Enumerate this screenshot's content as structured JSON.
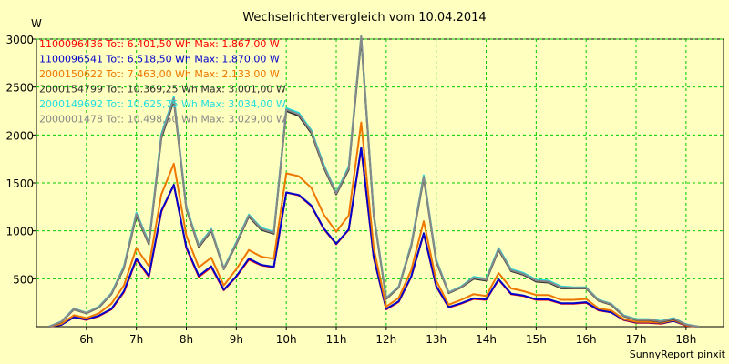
{
  "page": {
    "background": "#ffffc0",
    "plot_background": "#ffffc0",
    "grid_color": "#00cc00"
  },
  "chart_data": {
    "type": "line",
    "title": "Wechselrichtervergleich vom 10.04.2014",
    "ylabel": "W",
    "xlabel": "",
    "footer": "SunnyReport pinxit",
    "xlim": [
      5.0,
      18.75
    ],
    "ylim": [
      0,
      3000
    ],
    "x_ticks": [
      6,
      7,
      8,
      9,
      10,
      11,
      12,
      13,
      14,
      15,
      16,
      17,
      18
    ],
    "x_tick_labels": [
      "6h",
      "7h",
      "8h",
      "9h",
      "10h",
      "11h",
      "12h",
      "13h",
      "14h",
      "15h",
      "16h",
      "17h",
      "18h"
    ],
    "y_ticks": [
      500,
      1000,
      1500,
      2000,
      2500,
      3000
    ],
    "y_tick_labels": [
      "500",
      "1000",
      "1500",
      "2000",
      "2500",
      "3000"
    ],
    "grid": true,
    "legend_position": "top-left",
    "x": [
      5.25,
      5.5,
      5.75,
      6.0,
      6.25,
      6.5,
      6.75,
      7.0,
      7.25,
      7.5,
      7.75,
      8.0,
      8.25,
      8.5,
      8.75,
      9.0,
      9.25,
      9.5,
      9.75,
      10.0,
      10.25,
      10.5,
      10.75,
      11.0,
      11.25,
      11.5,
      11.75,
      12.0,
      12.25,
      12.5,
      12.75,
      13.0,
      13.25,
      13.5,
      13.75,
      14.0,
      14.25,
      14.5,
      14.75,
      15.0,
      15.25,
      15.5,
      15.75,
      16.0,
      16.25,
      16.5,
      16.75,
      17.0,
      17.25,
      17.5,
      17.75,
      18.0,
      18.25
    ],
    "series": [
      {
        "name": "1100096436 Tot: 6.401,50 Wh Max: 1.867,00 W",
        "color": "#ff0000",
        "values": [
          0,
          20,
          100,
          70,
          110,
          180,
          360,
          700,
          520,
          1200,
          1480,
          820,
          520,
          620,
          380,
          520,
          700,
          640,
          620,
          1400,
          1370,
          1260,
          1020,
          860,
          1010,
          1860,
          720,
          180,
          260,
          520,
          970,
          420,
          200,
          240,
          290,
          280,
          490,
          340,
          320,
          280,
          280,
          240,
          240,
          250,
          170,
          150,
          70,
          40,
          40,
          30,
          60,
          10,
          0
        ]
      },
      {
        "name": "1100096541 Tot: 6.518,50 Wh Max: 1.870,00 W",
        "color": "#0000cc",
        "values": [
          0,
          20,
          100,
          75,
          115,
          185,
          370,
          710,
          530,
          1210,
          1480,
          830,
          530,
          630,
          385,
          525,
          710,
          645,
          625,
          1400,
          1375,
          1265,
          1025,
          865,
          1015,
          1870,
          725,
          185,
          265,
          525,
          975,
          425,
          205,
          245,
          295,
          285,
          495,
          345,
          325,
          285,
          285,
          245,
          245,
          255,
          175,
          150,
          75,
          45,
          45,
          35,
          60,
          15,
          0
        ]
      },
      {
        "name": "2000150622 Tot: 7.463,00 Wh Max: 2.133,00 W",
        "color": "#ee7700",
        "values": [
          0,
          30,
          120,
          90,
          140,
          240,
          430,
          820,
          630,
          1380,
          1700,
          950,
          620,
          720,
          430,
          600,
          800,
          730,
          710,
          1600,
          1570,
          1450,
          1170,
          990,
          1160,
          2130,
          820,
          210,
          300,
          590,
          1100,
          480,
          230,
          280,
          340,
          320,
          560,
          400,
          370,
          330,
          330,
          280,
          280,
          290,
          190,
          170,
          80,
          50,
          50,
          40,
          70,
          15,
          0
        ]
      },
      {
        "name": "2000154799 Tot: 10.369,25 Wh Max: 3.001,00 W",
        "color": "#303030",
        "values": [
          0,
          50,
          180,
          140,
          200,
          340,
          610,
          1160,
          860,
          1970,
          2360,
          1230,
          830,
          1000,
          600,
          860,
          1150,
          1010,
          970,
          2250,
          2200,
          2020,
          1660,
          1380,
          1640,
          3000,
          1160,
          290,
          410,
          840,
          1550,
          680,
          350,
          410,
          500,
          480,
          800,
          580,
          540,
          470,
          460,
          400,
          400,
          400,
          270,
          230,
          110,
          70,
          70,
          50,
          80,
          20,
          0
        ]
      },
      {
        "name": "2000149692 Tot: 10.625,75 Wh Max: 3.034,00 W",
        "color": "#22dddd",
        "values": [
          0,
          55,
          190,
          145,
          210,
          350,
          630,
          1190,
          880,
          2010,
          2400,
          1250,
          850,
          1020,
          610,
          880,
          1170,
          1030,
          990,
          2280,
          2230,
          2050,
          1690,
          1400,
          1670,
          3030,
          1180,
          300,
          420,
          860,
          1580,
          700,
          360,
          420,
          520,
          500,
          820,
          600,
          560,
          490,
          480,
          420,
          410,
          410,
          280,
          240,
          120,
          80,
          80,
          60,
          90,
          25,
          0
        ]
      },
      {
        "name": "2000001478 Tot: 10.498,50 Wh Max: 3.029,00 W",
        "color": "#888888",
        "values": [
          0,
          52,
          185,
          142,
          205,
          345,
          620,
          1175,
          870,
          1990,
          2380,
          1240,
          840,
          1010,
          605,
          870,
          1160,
          1020,
          980,
          2265,
          2215,
          2035,
          1675,
          1390,
          1655,
          3029,
          1170,
          295,
          415,
          850,
          1565,
          690,
          355,
          415,
          510,
          490,
          810,
          590,
          550,
          480,
          470,
          410,
          405,
          405,
          275,
          235,
          115,
          75,
          75,
          55,
          85,
          22,
          0
        ]
      }
    ]
  }
}
